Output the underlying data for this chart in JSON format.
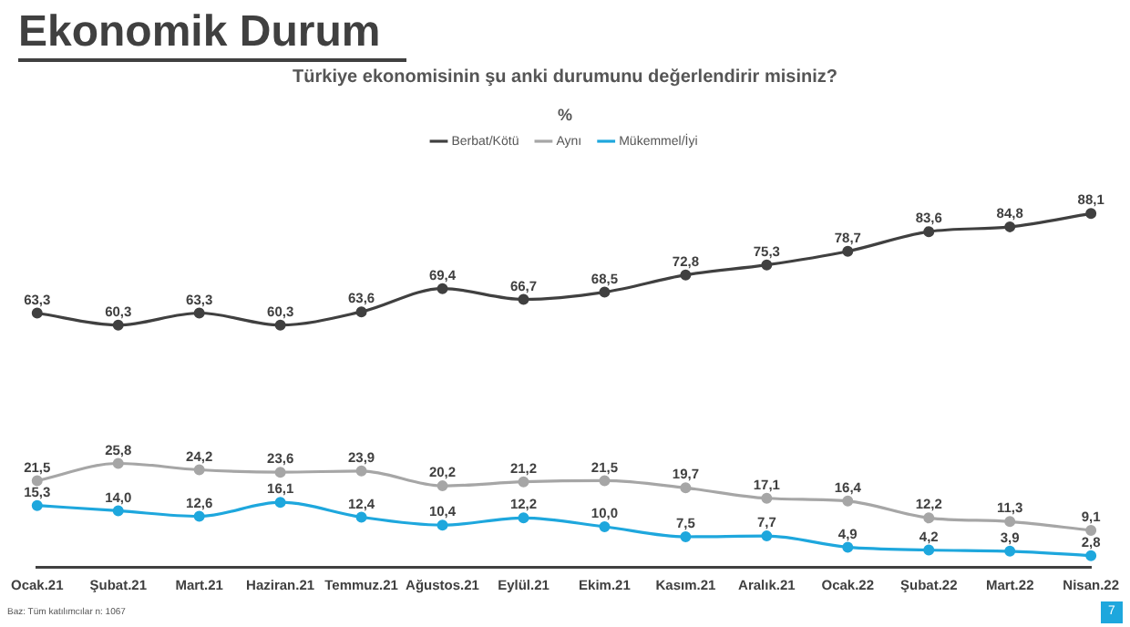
{
  "chart_data": {
    "type": "line",
    "title": "Ekonomik Durum",
    "subtitle": "Türkiye ekonomisinin şu anki durumunu değerlendirir misiniz?",
    "annotations": [
      "%",
      "Baz: Tüm katılımcılar n: 1067",
      "7"
    ],
    "categories": [
      "Ocak.21",
      "Şubat.21",
      "Mart.21",
      "Haziran.21",
      "Temmuz.21",
      "Ağustos.21",
      "Eylül.21",
      "Ekim.21",
      "Kasım.21",
      "Aralık.21",
      "Ocak.22",
      "Şubat.22",
      "Mart.22",
      "Nisan.22"
    ],
    "series": [
      {
        "name": "Berbat/Kötü",
        "color": "#404040",
        "values": [
          63.3,
          60.3,
          63.3,
          60.3,
          63.6,
          69.4,
          66.7,
          68.5,
          72.8,
          75.3,
          78.7,
          83.6,
          84.8,
          88.1
        ],
        "value_labels": [
          "63,3",
          "60,3",
          "63,3",
          "60,3",
          "63,6",
          "69,4",
          "66,7",
          "68,5",
          "72,8",
          "75,3",
          "78,7",
          "83,6",
          "84,8",
          "88,1"
        ]
      },
      {
        "name": "Aynı",
        "color": "#a6a6a6",
        "values": [
          21.5,
          25.8,
          24.2,
          23.6,
          23.9,
          20.2,
          21.2,
          21.5,
          19.7,
          17.1,
          16.4,
          12.2,
          11.3,
          9.1
        ],
        "value_labels": [
          "21,5",
          "25,8",
          "24,2",
          "23,6",
          "23,9",
          "20,2",
          "21,2",
          "21,5",
          "19,7",
          "17,1",
          "16,4",
          "12,2",
          "11,3",
          "9,1"
        ]
      },
      {
        "name": "Mükemmel/İyi",
        "color": "#1ea7dd",
        "values": [
          15.3,
          14.0,
          12.6,
          16.1,
          12.4,
          10.4,
          12.2,
          10.0,
          7.5,
          7.7,
          4.9,
          4.2,
          3.9,
          2.8
        ],
        "value_labels": [
          "15,3",
          "14,0",
          "12,6",
          "16,1",
          "12,4",
          "10,4",
          "12,2",
          "10,0",
          "7,5",
          "7,7",
          "4,9",
          "4,2",
          "3,9",
          "2,8"
        ]
      }
    ],
    "legend": "top",
    "marker": "circle",
    "line_style": "solid"
  }
}
